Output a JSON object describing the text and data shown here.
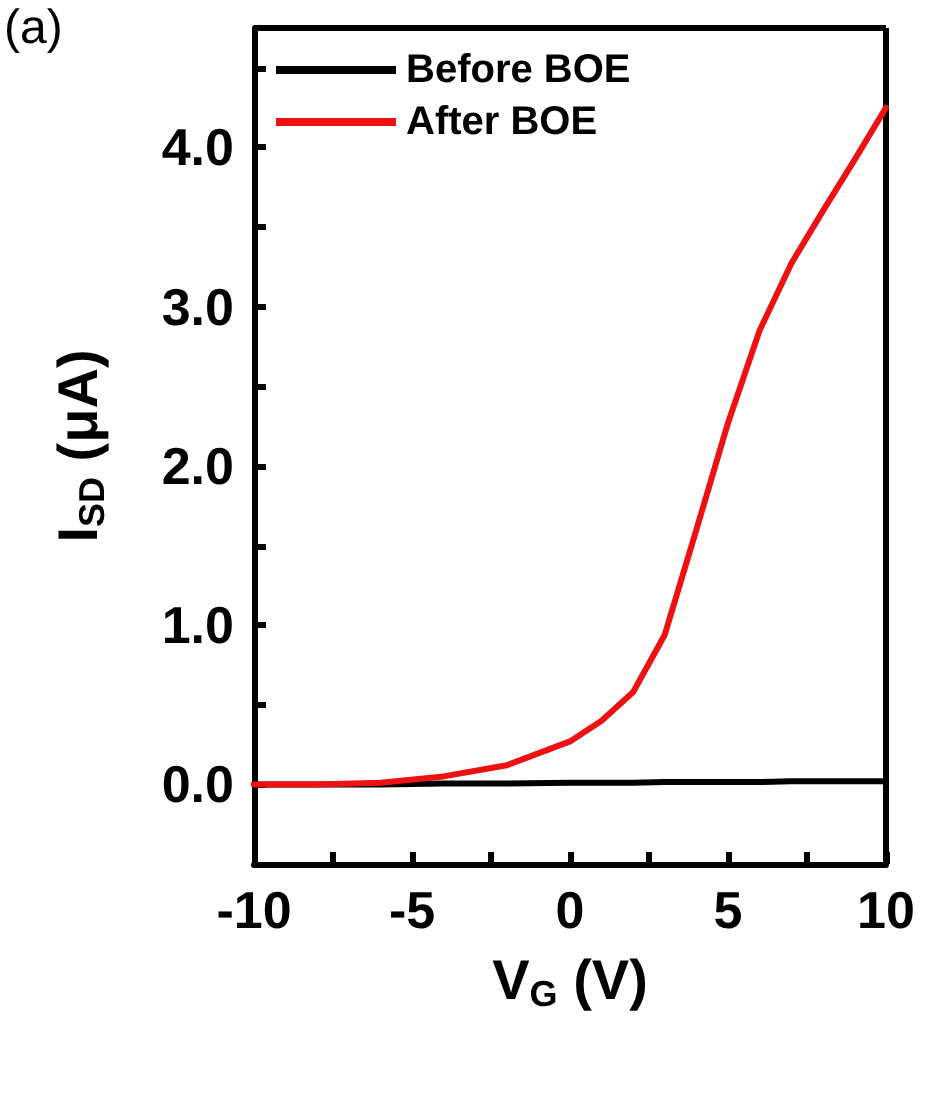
{
  "chart_data": {
    "type": "line",
    "xlabel": "V$_{G}$ (V)",
    "ylabel": "I$_{SD}$ (μA)",
    "annotations": [
      "(a)"
    ],
    "x": [
      -10,
      -8,
      -6,
      -4,
      -2,
      0,
      1,
      2,
      3,
      4,
      5,
      6,
      7,
      8,
      9,
      10
    ],
    "series": [
      {
        "name": "Before BOE",
        "color": "#000000",
        "values": [
          0,
          0,
          0,
          0.005,
          0.005,
          0.01,
          0.01,
          0.01,
          0.015,
          0.015,
          0.015,
          0.015,
          0.02,
          0.02,
          0.02,
          0.02
        ]
      },
      {
        "name": "After BOE",
        "color": "#ee1111",
        "values": [
          0,
          0,
          0.01,
          0.05,
          0.12,
          0.27,
          0.4,
          0.58,
          0.94,
          1.6,
          2.27,
          2.85,
          3.27,
          3.6,
          3.92,
          4.25
        ]
      }
    ],
    "xlim": [
      -10,
      10
    ],
    "ylim": [
      -0.5,
      4.75
    ],
    "xticks": [
      -10,
      {
        "value": -7.5,
        "label": null
      },
      -5,
      {
        "value": -2.5,
        "label": null
      },
      0,
      {
        "value": 2.5,
        "label": null
      },
      5,
      {
        "value": 7.5,
        "label": null
      },
      10
    ],
    "yticks": [
      {
        "value": -0.5,
        "label": null
      },
      {
        "value": 0,
        "label": "0.0"
      },
      {
        "value": 0.5,
        "label": null
      },
      {
        "value": 1,
        "label": "1.0"
      },
      {
        "value": 1.5,
        "label": null
      },
      {
        "value": 2,
        "label": "2.0"
      },
      {
        "value": 2.5,
        "label": null
      },
      {
        "value": 3,
        "label": "3.0"
      },
      {
        "value": 3.5,
        "label": null
      },
      {
        "value": 4,
        "label": "4.0"
      },
      {
        "value": 4.5,
        "label": null
      }
    ],
    "grid": false,
    "legend": "top left",
    "marker": "none",
    "line_style": "solid"
  }
}
